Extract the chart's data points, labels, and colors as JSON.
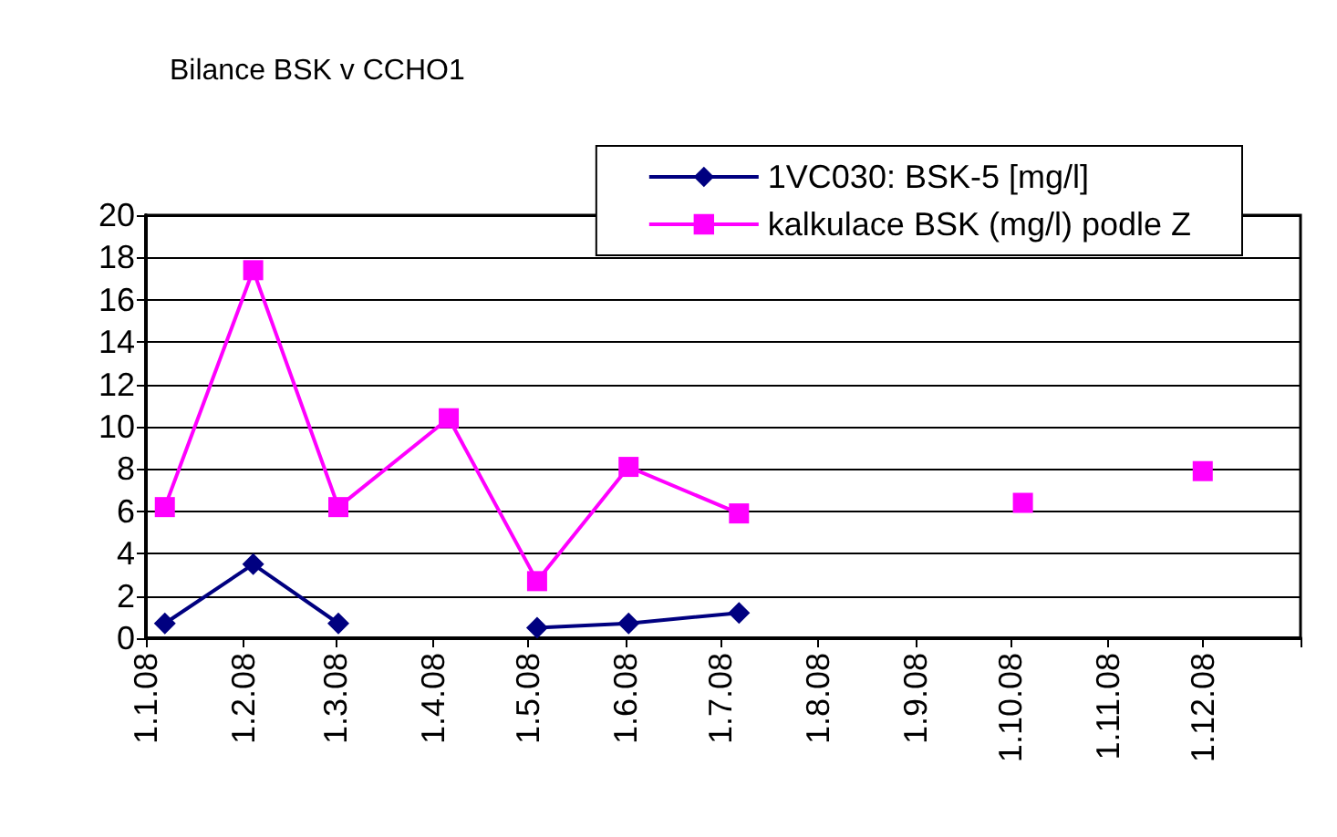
{
  "chart_data": {
    "type": "line",
    "title": "Bilance BSK v CCHO1",
    "x": [
      "2008-01-07",
      "2008-02-04",
      "2008-03-02",
      "2008-04-06",
      "2008-05-04",
      "2008-06-02",
      "2008-07-07",
      "2008-08-04",
      "2008-10-05",
      "2008-11-03",
      "2008-12-01"
    ],
    "series": [
      {
        "name": "1VC030: BSK-5 [mg/l]",
        "color": "#000080",
        "marker": "diamond",
        "values": [
          0.7,
          3.5,
          0.7,
          null,
          0.5,
          0.7,
          1.2,
          null,
          null,
          null,
          null
        ]
      },
      {
        "name": "kalkulace BSK (mg/l) podle Z",
        "color": "#ff00ff",
        "marker": "square",
        "values": [
          6.2,
          17.4,
          6.2,
          10.4,
          2.7,
          8.1,
          5.9,
          null,
          6.4,
          null,
          7.9
        ]
      }
    ],
    "xlim": [
      "2008-01-01",
      "2009-01-01"
    ],
    "xticks": [
      {
        "value": "2008-01-01",
        "label": "1.1.08"
      },
      {
        "value": "2008-02-01",
        "label": "1.2.08"
      },
      {
        "value": "2008-03-01",
        "label": "1.3.08"
      },
      {
        "value": "2008-04-01",
        "label": "1.4.08"
      },
      {
        "value": "2008-05-01",
        "label": "1.5.08"
      },
      {
        "value": "2008-06-01",
        "label": "1.6.08"
      },
      {
        "value": "2008-07-01",
        "label": "1.7.08"
      },
      {
        "value": "2008-08-01",
        "label": "1.8.08"
      },
      {
        "value": "2008-09-01",
        "label": "1.9.08"
      },
      {
        "value": "2008-10-01",
        "label": "1.10.08"
      },
      {
        "value": "2008-11-01",
        "label": "1.11.08"
      },
      {
        "value": "2008-12-01",
        "label": "1.12.08"
      },
      {
        "value": "2009-01-01",
        "label": null
      }
    ],
    "ylim": [
      0,
      20
    ],
    "yticks": [
      0,
      2,
      4,
      6,
      8,
      10,
      12,
      14,
      16,
      18,
      20
    ],
    "grid": "y",
    "legend": "top right"
  }
}
